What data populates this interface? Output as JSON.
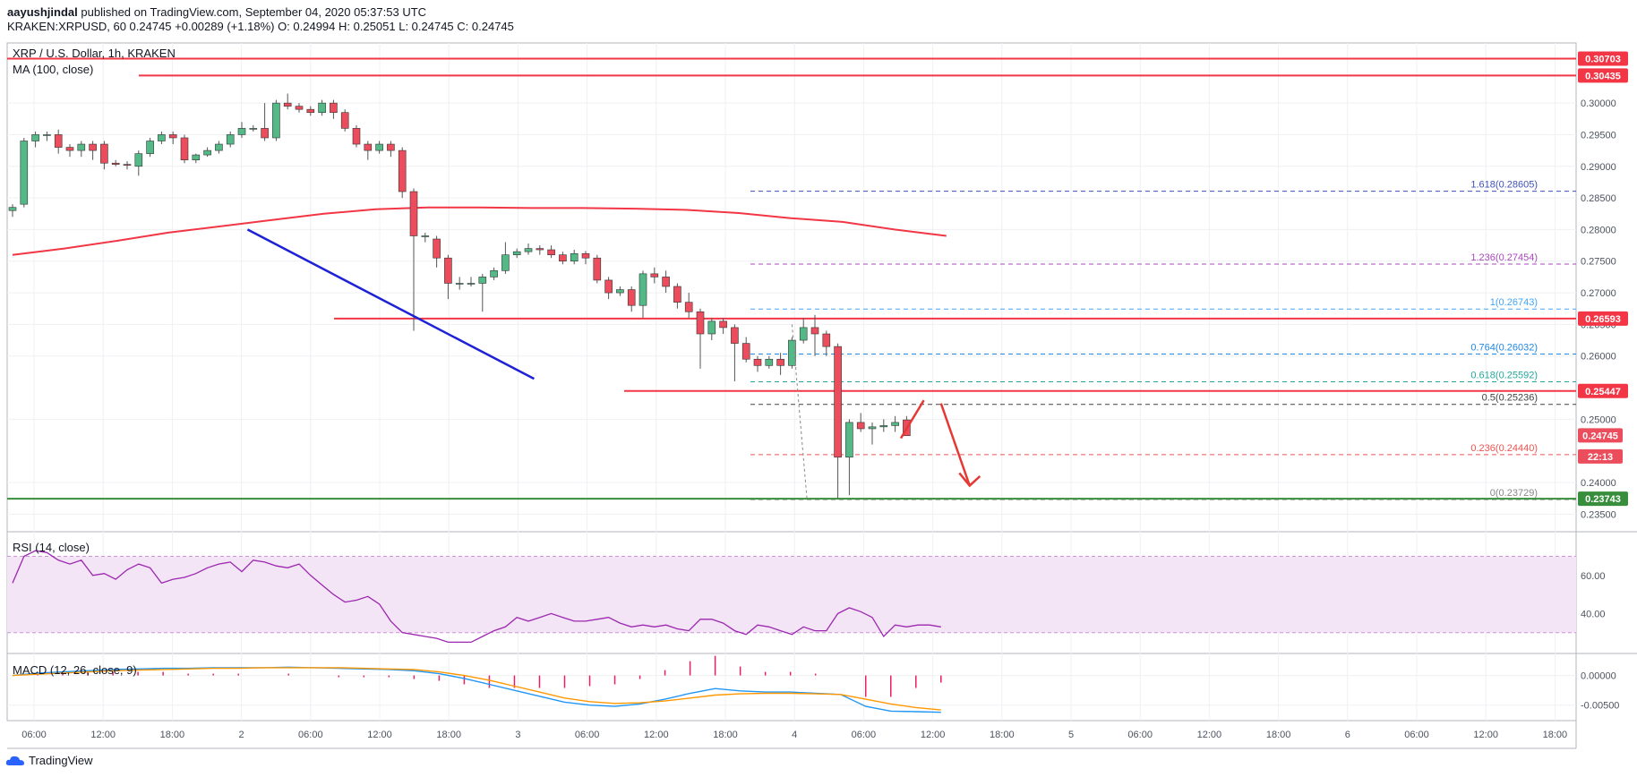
{
  "header": {
    "author": "aayushjindal",
    "published": "published on TradingView.com, September 04, 2020 05:37:53 UTC",
    "ohlc_line": "KRAKEN:XRPUSD, 60  0.24745  +0.00289 (+1.18%)  O: 0.24994  H: 0.25051  L: 0.24745  C: 0.24745"
  },
  "symbol_title": "XRP / U.S. Dollar, 1h, KRAKEN",
  "ma_label": "MA (100, close)",
  "rsi_label": "RSI (14, close)",
  "macd_label": "MACD (12, 26, close, 9)",
  "footer_brand": "TradingView",
  "colors": {
    "up": "#53b987",
    "down": "#eb4d5c",
    "ma": "#f23645",
    "trendline": "#1e22d6",
    "resistance": "#f23645",
    "support": "#388e3c",
    "rsi": "#9c27b0",
    "rsi_band": "#f3e5f5"
  },
  "chart_data": [
    {
      "type": "candlestick",
      "title": "XRP / U.S. Dollar, 1h, KRAKEN",
      "x_ticks": [
        "06:00",
        "12:00",
        "18:00",
        "2",
        "06:00",
        "12:00",
        "18:00",
        "3",
        "06:00",
        "12:00",
        "18:00",
        "4",
        "06:00",
        "12:00",
        "18:00",
        "5",
        "06:00",
        "12:00",
        "18:00",
        "6",
        "06:00",
        "12:00",
        "18:00"
      ],
      "y_ticks": [
        "0.30000",
        "0.29500",
        "0.29000",
        "0.28500",
        "0.28000",
        "0.27500",
        "0.27000",
        "0.26500",
        "0.26000",
        "0.25000",
        "0.24000",
        "0.23500"
      ],
      "ylim": [
        0.2325,
        0.3095
      ],
      "candles": [
        [
          0.283,
          0.2835,
          0.282,
          0.284
        ],
        [
          0.284,
          0.294,
          0.2835,
          0.2945
        ],
        [
          0.294,
          0.295,
          0.293,
          0.2955
        ],
        [
          0.295,
          0.295,
          0.294,
          0.2955
        ],
        [
          0.295,
          0.293,
          0.292,
          0.2958
        ],
        [
          0.293,
          0.2925,
          0.2915,
          0.2935
        ],
        [
          0.2925,
          0.2935,
          0.2915,
          0.294
        ],
        [
          0.2935,
          0.2925,
          0.291,
          0.294
        ],
        [
          0.2935,
          0.2905,
          0.2895,
          0.294
        ],
        [
          0.2905,
          0.2903,
          0.29,
          0.291
        ],
        [
          0.2903,
          0.2902,
          0.2895,
          0.2908
        ],
        [
          0.29,
          0.292,
          0.2885,
          0.2925
        ],
        [
          0.292,
          0.294,
          0.2915,
          0.2945
        ],
        [
          0.294,
          0.295,
          0.2935,
          0.2955
        ],
        [
          0.295,
          0.2945,
          0.2935,
          0.2955
        ],
        [
          0.2945,
          0.291,
          0.2905,
          0.295
        ],
        [
          0.291,
          0.2918,
          0.2905,
          0.292
        ],
        [
          0.2918,
          0.2925,
          0.2915,
          0.293
        ],
        [
          0.2925,
          0.2935,
          0.292,
          0.294
        ],
        [
          0.2935,
          0.295,
          0.293,
          0.2955
        ],
        [
          0.295,
          0.296,
          0.2945,
          0.297
        ],
        [
          0.296,
          0.296,
          0.2955,
          0.2965
        ],
        [
          0.296,
          0.2945,
          0.294,
          0.3
        ],
        [
          0.2945,
          0.3,
          0.294,
          0.3005
        ],
        [
          0.3,
          0.2995,
          0.299,
          0.3015
        ],
        [
          0.2995,
          0.299,
          0.2985,
          0.3
        ],
        [
          0.299,
          0.2985,
          0.298,
          0.2995
        ],
        [
          0.2985,
          0.3,
          0.298,
          0.3005
        ],
        [
          0.3,
          0.2985,
          0.2975,
          0.3005
        ],
        [
          0.2985,
          0.296,
          0.2955,
          0.299
        ],
        [
          0.296,
          0.2935,
          0.293,
          0.2965
        ],
        [
          0.2935,
          0.2925,
          0.291,
          0.294
        ],
        [
          0.2925,
          0.2935,
          0.292,
          0.294
        ],
        [
          0.2935,
          0.2925,
          0.2915,
          0.294
        ],
        [
          0.2925,
          0.286,
          0.285,
          0.293
        ],
        [
          0.286,
          0.279,
          0.264,
          0.2865
        ],
        [
          0.279,
          0.279,
          0.278,
          0.2795
        ],
        [
          0.2785,
          0.2755,
          0.274,
          0.279
        ],
        [
          0.2755,
          0.2715,
          0.269,
          0.276
        ],
        [
          0.2715,
          0.2715,
          0.2705,
          0.2725
        ],
        [
          0.2715,
          0.2715,
          0.271,
          0.2725
        ],
        [
          0.2715,
          0.2725,
          0.267,
          0.273
        ],
        [
          0.2725,
          0.2735,
          0.272,
          0.274
        ],
        [
          0.2735,
          0.276,
          0.273,
          0.278
        ],
        [
          0.276,
          0.2765,
          0.2755,
          0.277
        ],
        [
          0.2765,
          0.277,
          0.276,
          0.2778
        ],
        [
          0.277,
          0.2768,
          0.276,
          0.2775
        ],
        [
          0.2768,
          0.276,
          0.2755,
          0.2775
        ],
        [
          0.276,
          0.275,
          0.2745,
          0.2765
        ],
        [
          0.275,
          0.2762,
          0.2745,
          0.2768
        ],
        [
          0.2762,
          0.2755,
          0.2745,
          0.2766
        ],
        [
          0.2755,
          0.272,
          0.2715,
          0.276
        ],
        [
          0.272,
          0.27,
          0.269,
          0.2725
        ],
        [
          0.27,
          0.2705,
          0.2695,
          0.271
        ],
        [
          0.2705,
          0.268,
          0.267,
          0.271
        ],
        [
          0.268,
          0.273,
          0.266,
          0.2735
        ],
        [
          0.273,
          0.2725,
          0.2715,
          0.274
        ],
        [
          0.2725,
          0.271,
          0.27,
          0.2735
        ],
        [
          0.271,
          0.2685,
          0.2675,
          0.2715
        ],
        [
          0.2685,
          0.267,
          0.266,
          0.27
        ],
        [
          0.267,
          0.2635,
          0.258,
          0.2675
        ],
        [
          0.2635,
          0.2655,
          0.2625,
          0.266
        ],
        [
          0.2655,
          0.2645,
          0.2635,
          0.266
        ],
        [
          0.2645,
          0.262,
          0.256,
          0.265
        ],
        [
          0.262,
          0.2595,
          0.259,
          0.263
        ],
        [
          0.2595,
          0.2585,
          0.2575,
          0.26
        ],
        [
          0.2585,
          0.2595,
          0.258,
          0.26
        ],
        [
          0.2595,
          0.2585,
          0.257,
          0.2605
        ],
        [
          0.2585,
          0.2625,
          0.258,
          0.263
        ],
        [
          0.2625,
          0.2645,
          0.262,
          0.266
        ],
        [
          0.2645,
          0.2635,
          0.26,
          0.2665
        ],
        [
          0.2635,
          0.2615,
          0.26,
          0.264
        ],
        [
          0.2615,
          0.244,
          0.2375,
          0.262
        ],
        [
          0.244,
          0.2495,
          0.238,
          0.25
        ],
        [
          0.2495,
          0.2485,
          0.248,
          0.251
        ],
        [
          0.2485,
          0.2488,
          0.246,
          0.2495
        ],
        [
          0.2488,
          0.249,
          0.248,
          0.25
        ],
        [
          0.249,
          0.2495,
          0.248,
          0.2505
        ],
        [
          0.2499,
          0.2474,
          0.2474,
          0.2505
        ]
      ],
      "ma100": [
        0.276,
        0.277,
        0.2782,
        0.2795,
        0.2805,
        0.2815,
        0.2825,
        0.2832,
        0.2835,
        0.2835,
        0.2834,
        0.2834,
        0.2833,
        0.2831,
        0.2826,
        0.2818,
        0.2812,
        0.28,
        0.279
      ],
      "horizontal_levels": [
        {
          "label": "0.30703",
          "value": 0.30703,
          "kind": "resistance"
        },
        {
          "label": "0.30435",
          "value": 0.30435,
          "kind": "resistance"
        },
        {
          "label": "0.26593",
          "value": 0.26593,
          "kind": "resistance"
        },
        {
          "label": "0.25447",
          "value": 0.25447,
          "kind": "resistance"
        },
        {
          "label": "0.23743",
          "value": 0.23743,
          "kind": "support"
        }
      ],
      "fib_levels": [
        {
          "label": "1.618(0.28605)",
          "value": 0.28605,
          "color": "#3f51b5"
        },
        {
          "label": "1.236(0.27454)",
          "value": 0.27454,
          "color": "#ab47bc"
        },
        {
          "label": "1(0.26743)",
          "value": 0.26743,
          "color": "#42a5f5"
        },
        {
          "label": "0.764(0.26032)",
          "value": 0.26032,
          "color": "#1e88e5"
        },
        {
          "label": "0.618(0.25592)",
          "value": 0.25592,
          "color": "#26a69a"
        },
        {
          "label": "0.5(0.25236)",
          "value": 0.25236,
          "color": "#424242"
        },
        {
          "label": "0.236(0.24440)",
          "value": 0.2444,
          "color": "#ef5350"
        },
        {
          "label": "0(0.23729)",
          "value": 0.23729,
          "color": "#888888"
        }
      ],
      "price_tags": [
        {
          "label": "0.24745",
          "value": 0.24745
        },
        {
          "label": "22:13",
          "value": 0.2444
        }
      ],
      "trendline": {
        "from": [
          20.5,
          0.28
        ],
        "to": [
          45.5,
          0.2564
        ]
      }
    },
    {
      "type": "line",
      "title": "RSI (14, close)",
      "y_ticks": [
        "60.00",
        "40.00"
      ],
      "ylim": [
        20,
        82
      ],
      "band": [
        30,
        70
      ],
      "values": [
        56,
        70,
        73,
        72,
        68,
        66,
        68,
        60,
        61,
        58,
        63,
        66,
        64,
        56,
        58,
        59,
        61,
        64,
        66,
        67,
        62,
        68,
        67,
        65,
        64,
        66,
        60,
        55,
        50,
        46,
        47,
        49,
        45,
        36,
        30,
        29,
        28,
        27,
        25,
        25,
        25,
        28,
        31,
        33,
        38,
        36,
        38,
        40,
        38,
        36,
        36,
        37,
        38,
        35,
        33,
        34,
        33,
        34,
        32,
        31,
        37,
        37,
        35,
        31,
        29,
        34,
        33,
        31,
        29,
        33,
        31,
        31,
        40,
        43,
        41,
        38,
        28,
        34,
        33,
        34,
        34,
        33
      ]
    },
    {
      "type": "macd",
      "title": "MACD (12, 26, close, 9)",
      "y_ticks": [
        "0.00000",
        "-0.00500"
      ],
      "ylim": [
        -0.0076,
        0.0034
      ],
      "macd": [
        0.0,
        0.0004,
        0.0006,
        0.0008,
        0.001,
        0.0011,
        0.0012,
        0.0012,
        0.0013,
        0.0013,
        0.0013,
        0.0014,
        0.0013,
        0.0012,
        0.0011,
        0.001,
        0.0008,
        0.0003,
        -0.0005,
        -0.0015,
        -0.0025,
        -0.0035,
        -0.0045,
        -0.005,
        -0.0052,
        -0.0048,
        -0.004,
        -0.003,
        -0.0022,
        -0.0026,
        -0.0028,
        -0.0028,
        -0.003,
        -0.0032,
        -0.0052,
        -0.006,
        -0.0061,
        -0.0062
      ],
      "signal": [
        0.0,
        0.0002,
        0.0004,
        0.0006,
        0.0008,
        0.0009,
        0.001,
        0.0011,
        0.0012,
        0.0012,
        0.0013,
        0.0013,
        0.0013,
        0.0013,
        0.0012,
        0.0011,
        0.001,
        0.0006,
        0.0,
        -0.0008,
        -0.0018,
        -0.0028,
        -0.0038,
        -0.0044,
        -0.0047,
        -0.0046,
        -0.0043,
        -0.0038,
        -0.0033,
        -0.0031,
        -0.003,
        -0.003,
        -0.0031,
        -0.0032,
        -0.004,
        -0.0048,
        -0.0054,
        -0.0058
      ]
    }
  ]
}
